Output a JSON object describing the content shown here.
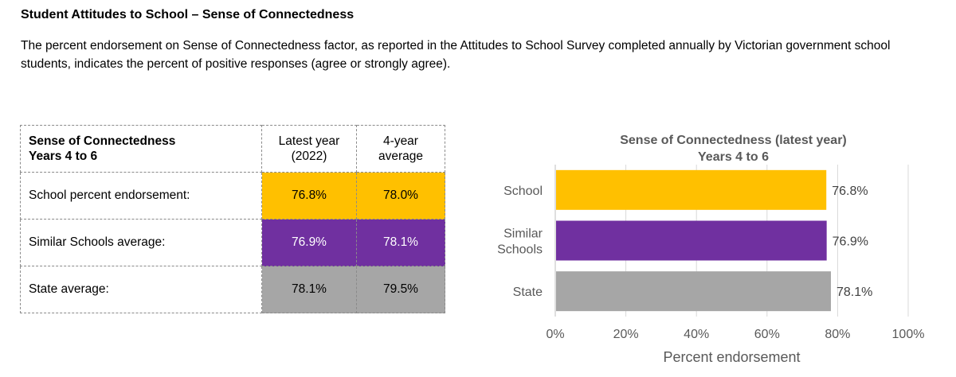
{
  "heading": "Student Attitudes to School – Sense of Connectedness",
  "description": "The percent endorsement on Sense of Connectedness factor, as reported in the Attitudes to School Survey completed annually by Victorian government school students, indicates the percent of positive responses (agree or strongly agree).",
  "table": {
    "header": {
      "label_line1": "Sense of Connectedness",
      "label_line2": "Years 4 to 6",
      "col1_line1": "Latest year",
      "col1_line2": "(2022)",
      "col2_line1": "4-year",
      "col2_line2": "average"
    },
    "rows": [
      {
        "label": "School percent endorsement:",
        "latest": "76.8%",
        "average": "78.0%"
      },
      {
        "label": "Similar Schools average:",
        "latest": "76.9%",
        "average": "78.1%"
      },
      {
        "label": "State average:",
        "latest": "78.1%",
        "average": "79.5%"
      }
    ]
  },
  "colors": {
    "school": "#ffc000",
    "similar": "#7030a0",
    "state": "#a6a6a6"
  },
  "chart_data": {
    "type": "bar",
    "orientation": "horizontal",
    "title_line1": "Sense of Connectedness (latest year)",
    "title_line2": "Years 4 to 6",
    "xlabel": "Percent endorsement",
    "xlim": [
      0,
      100
    ],
    "ticks": [
      0,
      20,
      40,
      60,
      80,
      100
    ],
    "tick_labels": [
      "0%",
      "20%",
      "40%",
      "60%",
      "80%",
      "100%"
    ],
    "categories": [
      [
        "School"
      ],
      [
        "Similar",
        "Schools"
      ],
      [
        "State"
      ]
    ],
    "values": [
      76.8,
      76.9,
      78.1
    ],
    "value_labels": [
      "76.8%",
      "76.9%",
      "78.1%"
    ],
    "bar_colors": [
      "#ffc000",
      "#7030a0",
      "#a6a6a6"
    ],
    "grid": true
  }
}
